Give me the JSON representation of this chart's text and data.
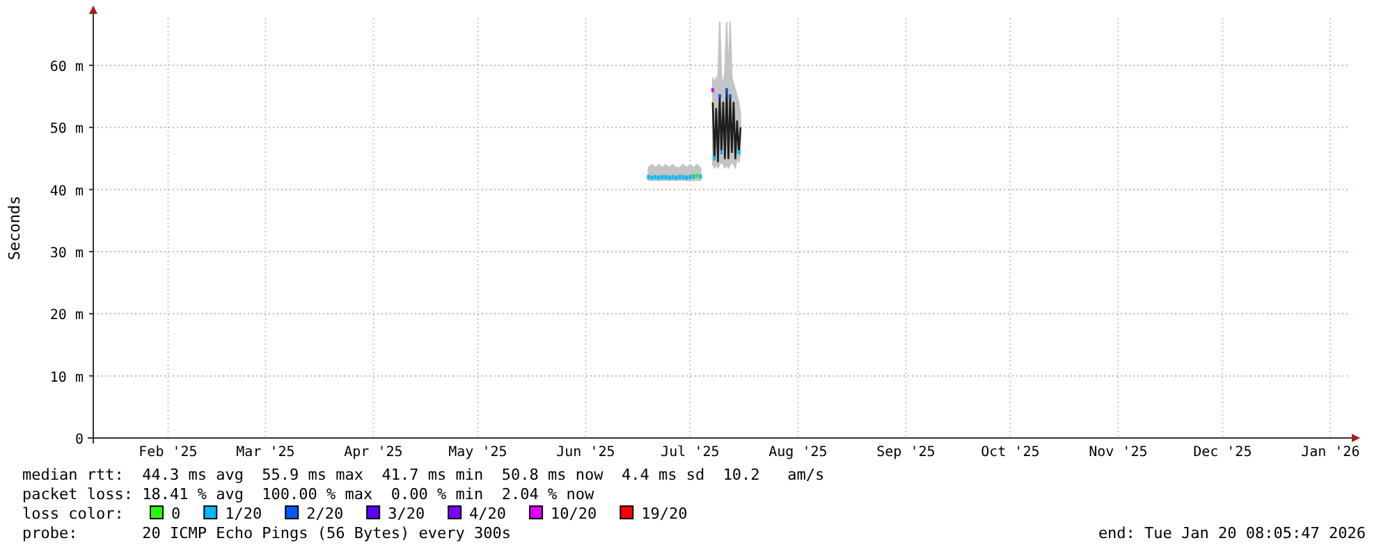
{
  "chart_data": {
    "type": "line",
    "ylabel": "Seconds",
    "legend_title": "loss color:",
    "legend": "bottom",
    "grid": true,
    "annotations": [
      "median rtt:  44.3 ms avg  55.9 ms max  41.7 ms min  50.8 ms now  4.4 ms sd  10.2   am/s",
      "packet loss: 18.41 % avg  100.00 % max  0.00 % min  2.04 % now",
      "probe:       20 ICMP Echo Pings (56 Bytes) every 300s",
      "end: Tue Jan 20 08:05:47 2026"
    ],
    "xlim": [
      "2025-01-24T12:00",
      "2026-01-20T08:05"
    ],
    "xticks": [
      {
        "value": "2025-02-15",
        "label": "Feb '25"
      },
      {
        "value": "2025-03-15",
        "label": "Mar '25"
      },
      {
        "value": "2025-04-15",
        "label": "Apr '25"
      },
      {
        "value": "2025-05-15",
        "label": "May '25"
      },
      {
        "value": "2025-06-15",
        "label": "Jun '25"
      },
      {
        "value": "2025-07-15",
        "label": "Jul '25"
      },
      {
        "value": "2025-08-15",
        "label": "Aug '25"
      },
      {
        "value": "2025-09-15",
        "label": "Sep '25"
      },
      {
        "value": "2025-10-15",
        "label": "Oct '25"
      },
      {
        "value": "2025-11-15",
        "label": "Nov '25"
      },
      {
        "value": "2025-12-15",
        "label": "Dec '25"
      },
      {
        "value": "2026-01-15",
        "label": "Jan '26"
      }
    ],
    "ylim": [
      0,
      67.6
    ],
    "yticks": [
      0,
      {
        "value": 10,
        "label": "10 m"
      },
      {
        "value": 20,
        "label": "20 m"
      },
      {
        "value": 30,
        "label": "30 m"
      },
      {
        "value": 40,
        "label": "40 m"
      },
      {
        "value": 50,
        "label": "50 m"
      },
      {
        "value": 60,
        "label": "60 m"
      }
    ],
    "x": [
      "2025-07-03",
      "2025-07-04",
      "2025-07-05",
      "2025-07-06",
      "2025-07-07",
      "2025-07-08",
      "2025-07-09",
      "2025-07-10",
      "2025-07-11",
      "2025-07-12",
      "2025-07-13",
      "2025-07-14",
      "2025-07-15",
      "2025-07-16",
      "2025-07-17",
      "2025-07-18",
      "2025-07-20",
      "2025-07-21T12:00",
      "2025-07-22T00:00",
      "2025-07-22T12:00",
      "2025-07-23T00:00",
      "2025-07-23T12:00",
      "2025-07-24T00:00",
      "2025-07-24T12:00",
      "2025-07-25T00:00",
      "2025-07-25T12:00",
      "2025-07-26T00:00",
      "2025-07-26T12:00",
      "2025-07-27T00:00",
      "2025-07-27T12:00",
      "2025-07-28T00:00",
      "2025-07-28T12:00",
      "2025-07-29T00:00",
      "2025-07-29T12:00"
    ],
    "series": [
      {
        "color": "#1e1e1e",
        "values": [
          null,
          null,
          null,
          null,
          null,
          null,
          null,
          null,
          null,
          null,
          null,
          null,
          null,
          null,
          null,
          null,
          null,
          54,
          45,
          53,
          44.5,
          55,
          46,
          54,
          45,
          56,
          45,
          55,
          46,
          54,
          45,
          51,
          46,
          50
        ],
        "lower": [
          41.5,
          41.5,
          41.5,
          41.5,
          41.5,
          41.5,
          41.5,
          41.5,
          41.5,
          41.5,
          41.5,
          41.5,
          41.5,
          41.5,
          41.5,
          41.5,
          null,
          44,
          43.5,
          44,
          43.5,
          44,
          44.5,
          44,
          43.5,
          44,
          43.5,
          44,
          44.5,
          44,
          43.5,
          45,
          44.5,
          46
        ],
        "upper": [
          43.5,
          44,
          43.5,
          44,
          43.5,
          44,
          43.5,
          44,
          43.5,
          43.5,
          44,
          43.5,
          44,
          43.5,
          44,
          43.5,
          null,
          58,
          57,
          58,
          57,
          67,
          58,
          57,
          59,
          67,
          58,
          67,
          58,
          57,
          56,
          55,
          54,
          52
        ]
      },
      {
        "type": "scatter",
        "name": "0",
        "color": "#26ff00",
        "values": [
          null,
          null,
          null,
          null,
          null,
          null,
          null,
          null,
          null,
          null,
          null,
          null,
          null,
          null,
          42.2,
          null,
          null,
          null,
          null,
          null,
          null,
          null,
          null,
          null,
          null,
          null,
          null,
          null,
          null,
          null,
          null,
          null,
          null,
          null
        ]
      },
      {
        "type": "scatter",
        "name": "1/20",
        "color": "#00b8ff",
        "values": [
          42,
          41.9,
          42,
          41.9,
          42,
          42,
          41.9,
          42,
          41.9,
          42,
          42,
          41.9,
          42,
          42.1,
          null,
          42.1,
          null,
          null,
          45,
          null,
          null,
          null,
          46,
          null,
          null,
          null,
          null,
          null,
          null,
          null,
          null,
          null,
          46,
          null
        ]
      },
      {
        "type": "scatter",
        "name": "2/20",
        "color": "#0059ff",
        "values": [
          null,
          null,
          null,
          null,
          null,
          null,
          null,
          null,
          null,
          null,
          null,
          null,
          null,
          null,
          null,
          null,
          null,
          null,
          null,
          null,
          null,
          55,
          null,
          null,
          null,
          56,
          null,
          55,
          null,
          null,
          null,
          null,
          null,
          null
        ]
      },
      {
        "type": "scatter",
        "name": "3/20",
        "color": "#5e00ff",
        "values": [
          null,
          null,
          null,
          null,
          null,
          null,
          null,
          null,
          null,
          null,
          null,
          null,
          null,
          null,
          null,
          null,
          null,
          null,
          null,
          null,
          null,
          null,
          null,
          null,
          null,
          null,
          null,
          null,
          null,
          null,
          null,
          null,
          null,
          null
        ]
      },
      {
        "type": "scatter",
        "name": "4/20",
        "color": "#7e00ff",
        "values": [
          null,
          null,
          null,
          null,
          null,
          null,
          null,
          null,
          null,
          null,
          null,
          null,
          null,
          null,
          null,
          null,
          null,
          null,
          null,
          null,
          null,
          null,
          null,
          null,
          null,
          null,
          null,
          null,
          null,
          null,
          null,
          null,
          null,
          null
        ]
      },
      {
        "type": "scatter",
        "name": "10/20",
        "color": "#dd00ff",
        "values": [
          null,
          null,
          null,
          null,
          null,
          null,
          null,
          null,
          null,
          null,
          null,
          null,
          null,
          null,
          null,
          null,
          null,
          56,
          null,
          null,
          null,
          null,
          null,
          null,
          null,
          null,
          null,
          null,
          null,
          null,
          null,
          null,
          null,
          null
        ]
      },
      {
        "type": "scatter",
        "name": "19/20",
        "color": "#ff0000",
        "values": [
          null,
          null,
          null,
          null,
          null,
          null,
          null,
          null,
          null,
          null,
          null,
          null,
          null,
          null,
          null,
          null,
          null,
          null,
          null,
          null,
          null,
          null,
          null,
          null,
          null,
          null,
          null,
          null,
          null,
          null,
          null,
          null,
          null,
          null
        ]
      }
    ]
  }
}
